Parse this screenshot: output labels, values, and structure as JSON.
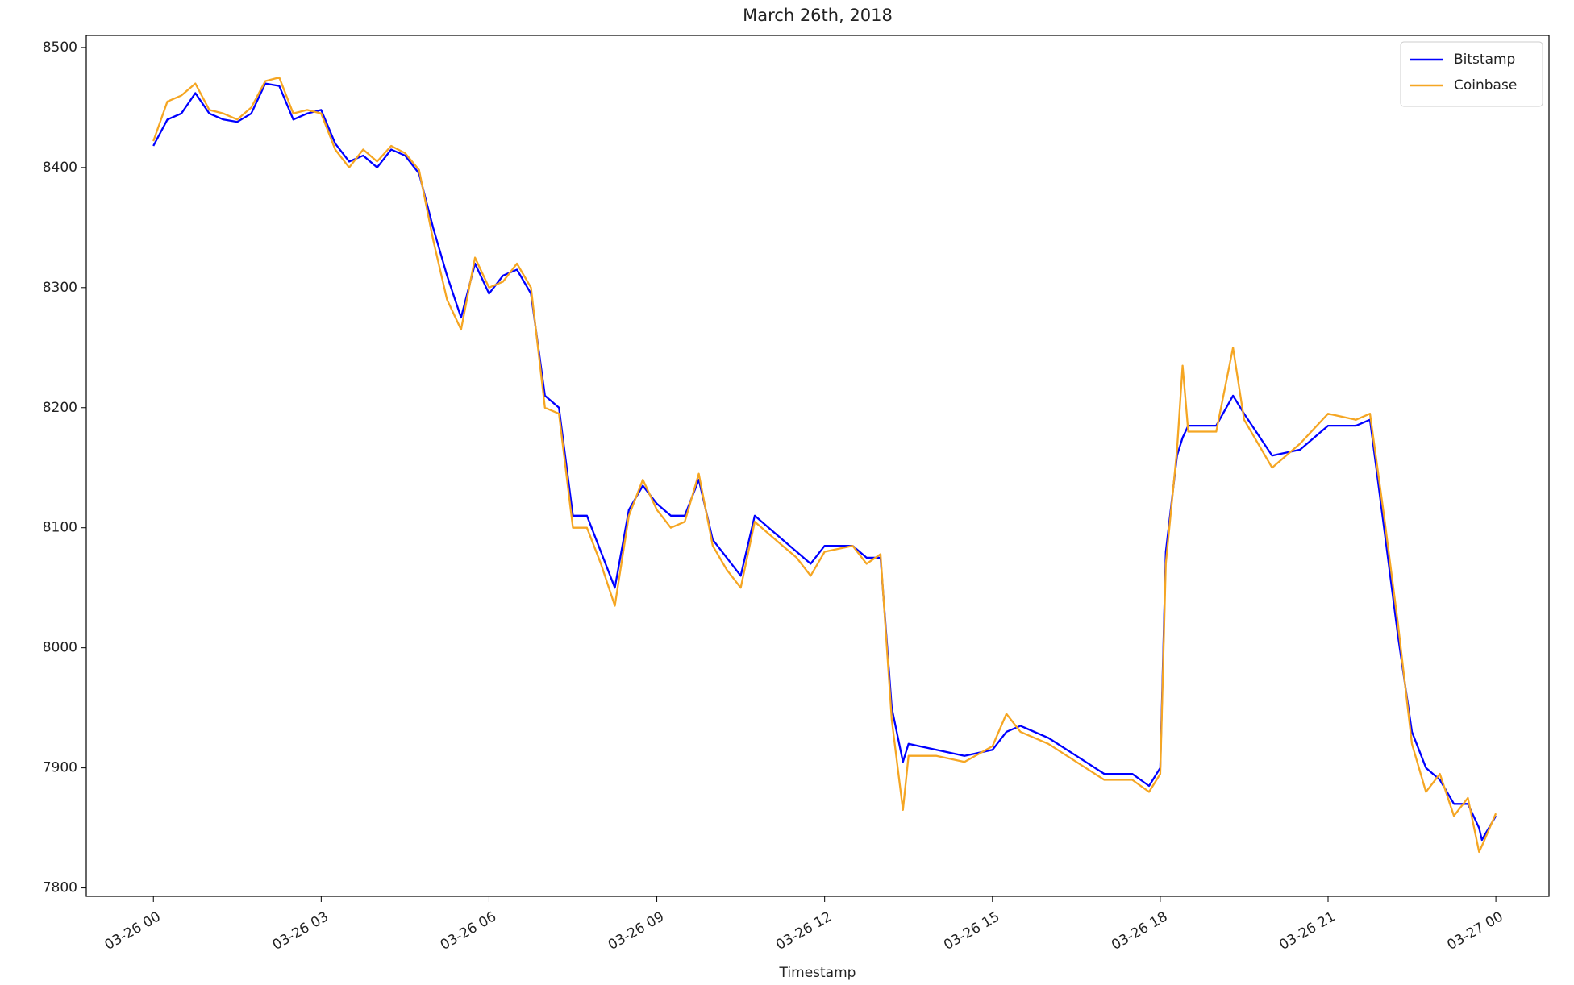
{
  "chart_data": {
    "type": "line",
    "title": "March 26th, 2018",
    "x_label": "Timestamp",
    "x": [
      0,
      0.25,
      0.5,
      0.75,
      1,
      1.25,
      1.5,
      1.75,
      2,
      2.25,
      2.5,
      2.75,
      3,
      3.25,
      3.5,
      3.75,
      4,
      4.25,
      4.5,
      4.75,
      5,
      5.25,
      5.5,
      5.75,
      6,
      6.25,
      6.5,
      6.75,
      7,
      7.25,
      7.5,
      7.75,
      8,
      8.25,
      8.5,
      8.75,
      9,
      9.25,
      9.5,
      9.75,
      10,
      10.25,
      10.5,
      10.75,
      11,
      11.25,
      11.5,
      11.75,
      12,
      12.5,
      12.75,
      13,
      13.2,
      13.4,
      13.5,
      14,
      14.5,
      15,
      15.25,
      15.5,
      16,
      16.5,
      17,
      17.5,
      17.8,
      18,
      18.1,
      18.3,
      18.4,
      18.5,
      19,
      19.3,
      19.5,
      20,
      20.5,
      21,
      21.5,
      21.75,
      22,
      22.25,
      22.5,
      22.75,
      23,
      23.25,
      23.5,
      23.7,
      23.75,
      24
    ],
    "series": [
      {
        "name": "Bitstamp",
        "color": "#0000ff",
        "values": [
          8418,
          8440,
          8445,
          8462,
          8445,
          8440,
          8438,
          8445,
          8470,
          8468,
          8440,
          8445,
          8448,
          8420,
          8405,
          8410,
          8400,
          8415,
          8410,
          8395,
          8350,
          8310,
          8275,
          8320,
          8295,
          8310,
          8315,
          8295,
          8210,
          8200,
          8110,
          8110,
          8080,
          8050,
          8115,
          8135,
          8120,
          8110,
          8110,
          8140,
          8090,
          8075,
          8060,
          8110,
          8100,
          8090,
          8080,
          8070,
          8085,
          8085,
          8075,
          8075,
          7950,
          7905,
          7920,
          7915,
          7910,
          7915,
          7930,
          7935,
          7925,
          7910,
          7895,
          7895,
          7885,
          7900,
          8080,
          8160,
          8175,
          8185,
          8185,
          8210,
          8195,
          8160,
          8165,
          8185,
          8185,
          8190,
          8100,
          8010,
          7930,
          7900,
          7890,
          7870,
          7870,
          7850,
          7840,
          7860
        ]
      },
      {
        "name": "Coinbase",
        "color": "#f5a623",
        "values": [
          8422,
          8455,
          8460,
          8470,
          8448,
          8445,
          8440,
          8450,
          8472,
          8475,
          8445,
          8448,
          8445,
          8415,
          8400,
          8415,
          8405,
          8418,
          8412,
          8398,
          8340,
          8290,
          8265,
          8325,
          8300,
          8305,
          8320,
          8300,
          8200,
          8195,
          8100,
          8100,
          8070,
          8035,
          8110,
          8140,
          8115,
          8100,
          8105,
          8145,
          8085,
          8065,
          8050,
          8105,
          8095,
          8085,
          8075,
          8060,
          8080,
          8085,
          8070,
          8078,
          7940,
          7865,
          7910,
          7910,
          7905,
          7918,
          7945,
          7930,
          7920,
          7905,
          7890,
          7890,
          7880,
          7895,
          8070,
          8165,
          8235,
          8180,
          8180,
          8250,
          8190,
          8150,
          8170,
          8195,
          8190,
          8195,
          8110,
          8020,
          7920,
          7880,
          7895,
          7860,
          7875,
          7830,
          7835,
          7862
        ]
      }
    ],
    "xlim": [
      -1.2,
      24.95
    ],
    "ylim": [
      7793,
      8510
    ],
    "xticks": [
      {
        "value": 0,
        "label": "03-26 00"
      },
      {
        "value": 3,
        "label": "03-26 03"
      },
      {
        "value": 6,
        "label": "03-26 06"
      },
      {
        "value": 9,
        "label": "03-26 09"
      },
      {
        "value": 12,
        "label": "03-26 12"
      },
      {
        "value": 15,
        "label": "03-26 15"
      },
      {
        "value": 18,
        "label": "03-26 18"
      },
      {
        "value": 21,
        "label": "03-26 21"
      },
      {
        "value": 24,
        "label": "03-27 00"
      }
    ],
    "yticks": [
      7800,
      7900,
      8000,
      8100,
      8200,
      8300,
      8400,
      8500
    ],
    "legend": "upper right"
  }
}
